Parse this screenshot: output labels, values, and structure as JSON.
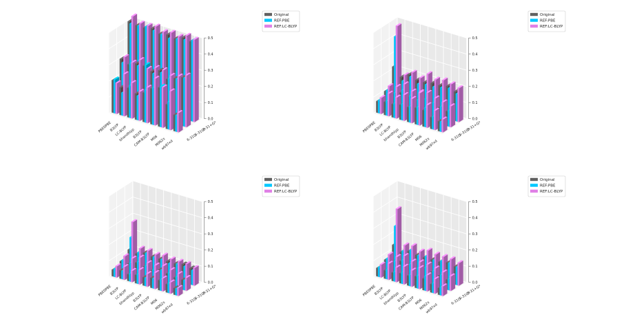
{
  "chart_data": [
    {
      "type": "bar3d",
      "functionals": [
        "PBE0PBE",
        "B3LYP",
        "LC-BLYP",
        "bhandhlyp",
        "B3LYP",
        "CAM-B3LYP",
        "M06",
        "M062x",
        "wb97xd"
      ],
      "basis_sets": [
        "6-31G",
        "6-31G*",
        "6-31+G*"
      ],
      "zlim": [
        0,
        0.5
      ],
      "zticks": [
        "0.0",
        "0.1",
        "0.2",
        "0.3",
        "0.4",
        "0.5"
      ],
      "legend": [
        "Original",
        "REF:PBE",
        "REF:LC-BLYP"
      ],
      "colors": [
        "#616161",
        "#00c8ff",
        "#e080e6"
      ],
      "series": [
        {
          "name": "Original",
          "values": [
            [
              0.2,
              0.17,
              0.18,
              0.16,
              0.18,
              0.22,
              0.24,
              0.15,
              0.1
            ],
            [
              0.3,
              0.28,
              0.3,
              0.3,
              0.28,
              0.3,
              0.26,
              0.28,
              0.3
            ],
            [
              0.5,
              0.49,
              0.49,
              0.5,
              0.48,
              0.49,
              0.48,
              0.5,
              0.49
            ]
          ]
        },
        {
          "name": "REF:PBE",
          "values": [
            [
              0.21,
              0.14,
              0.2,
              0.15,
              0.2,
              0.23,
              0.25,
              0.17,
              0.1
            ],
            [
              0.28,
              0.29,
              0.29,
              0.31,
              0.27,
              0.29,
              0.27,
              0.28,
              0.3
            ],
            [
              0.49,
              0.49,
              0.5,
              0.49,
              0.48,
              0.47,
              0.48,
              0.49,
              0.5
            ]
          ]
        },
        {
          "name": "REF:LC-BLYP",
          "values": [
            [
              0.19,
              0.26,
              0.22,
              0.18,
              0.22,
              0.29,
              0.25,
              0.24,
              0.12
            ],
            [
              0.32,
              0.3,
              0.33,
              0.29,
              0.31,
              0.31,
              0.29,
              0.3,
              0.32
            ],
            [
              0.54,
              0.51,
              0.51,
              0.52,
              0.5,
              0.51,
              0.5,
              0.52,
              0.51
            ]
          ]
        }
      ]
    },
    {
      "type": "bar3d",
      "functionals": [
        "PBE0PBE",
        "B3LYP",
        "LC-BLYP",
        "bhandhlyp",
        "B3LYP",
        "CAM-B3LYP",
        "M06",
        "M062x",
        "wb97xd"
      ],
      "basis_sets": [
        "6-31G",
        "6-31G*",
        "6-31+G*"
      ],
      "zlim": [
        0,
        0.5
      ],
      "zticks": [
        "0.0",
        "0.1",
        "0.2",
        "0.3",
        "0.4",
        "0.5"
      ],
      "legend": [
        "Original",
        "REF:PBE",
        "REF:LC-BLYP"
      ],
      "colors": [
        "#616161",
        "#00c8ff",
        "#e080e6"
      ],
      "series": [
        {
          "name": "Original",
          "values": [
            [
              0.07,
              0.08,
              0.08,
              0.09,
              0.09,
              0.1,
              0.1,
              0.07,
              0.06
            ],
            [
              0.1,
              0.1,
              0.12,
              0.11,
              0.1,
              0.12,
              0.11,
              0.1,
              0.09
            ],
            [
              0.22,
              0.17,
              0.2,
              0.18,
              0.18,
              0.19,
              0.19,
              0.2,
              0.18
            ]
          ]
        },
        {
          "name": "REF:PBE",
          "values": [
            [
              0.08,
              0.09,
              0.09,
              0.1,
              0.1,
              0.11,
              0.12,
              0.08,
              0.06
            ],
            [
              0.11,
              0.11,
              0.14,
              0.12,
              0.11,
              0.13,
              0.12,
              0.11,
              0.1
            ],
            [
              0.41,
              0.15,
              0.19,
              0.16,
              0.17,
              0.17,
              0.18,
              0.19,
              0.17
            ]
          ]
        },
        {
          "name": "REF:LC-BLYP",
          "values": [
            [
              0.1,
              0.14,
              0.13,
              0.16,
              0.15,
              0.2,
              0.14,
              0.12,
              0.08
            ],
            [
              0.14,
              0.15,
              0.18,
              0.15,
              0.16,
              0.17,
              0.15,
              0.14,
              0.13
            ],
            [
              0.48,
              0.19,
              0.22,
              0.2,
              0.24,
              0.22,
              0.23,
              0.22,
              0.21
            ]
          ]
        }
      ]
    },
    {
      "type": "bar3d",
      "functionals": [
        "PBE0PBE",
        "B3LYP",
        "LC-BLYP",
        "bhandhlyp",
        "B3LYP",
        "CAM-B3LYP",
        "M06",
        "M062x",
        "wb97xd"
      ],
      "basis_sets": [
        "6-31G",
        "6-31G*",
        "6-31+G*"
      ],
      "zlim": [
        0,
        0.5
      ],
      "zticks": [
        "0.0",
        "0.1",
        "0.2",
        "0.3",
        "0.4",
        "0.5"
      ],
      "legend": [
        "Original",
        "REF:PBE",
        "REF:LC-BLYP"
      ],
      "colors": [
        "#616161",
        "#00c8ff",
        "#e080e6"
      ],
      "series": [
        {
          "name": "Original",
          "values": [
            [
              0.04,
              0.05,
              0.04,
              0.05,
              0.05,
              0.06,
              0.06,
              0.05,
              0.04
            ],
            [
              0.06,
              0.06,
              0.08,
              0.07,
              0.06,
              0.08,
              0.07,
              0.06,
              0.06
            ],
            [
              0.1,
              0.09,
              0.11,
              0.1,
              0.1,
              0.1,
              0.1,
              0.11,
              0.1
            ]
          ]
        },
        {
          "name": "REF:PBE",
          "values": [
            [
              0.05,
              0.05,
              0.05,
              0.06,
              0.05,
              0.06,
              0.07,
              0.06,
              0.04
            ],
            [
              0.07,
              0.07,
              0.09,
              0.08,
              0.07,
              0.08,
              0.08,
              0.07,
              0.06
            ],
            [
              0.18,
              0.1,
              0.11,
              0.1,
              0.1,
              0.09,
              0.1,
              0.1,
              0.09
            ]
          ]
        },
        {
          "name": "REF:LC-BLYP",
          "values": [
            [
              0.07,
              0.08,
              0.07,
              0.09,
              0.08,
              0.1,
              0.08,
              0.07,
              0.05
            ],
            [
              0.1,
              0.1,
              0.12,
              0.1,
              0.1,
              0.11,
              0.1,
              0.09,
              0.08
            ],
            [
              0.28,
              0.13,
              0.13,
              0.12,
              0.13,
              0.12,
              0.12,
              0.12,
              0.11
            ]
          ]
        }
      ]
    },
    {
      "type": "bar3d",
      "functionals": [
        "PBE0PBE",
        "B3LYP",
        "LC-BLYP",
        "bhandhlyp",
        "B3LYP",
        "CAM-B3LYP",
        "M06",
        "M062x",
        "wb97xd"
      ],
      "basis_sets": [
        "6-31G",
        "6-31G*",
        "6-31+G*"
      ],
      "zlim": [
        0,
        0.5
      ],
      "zticks": [
        "0.0",
        "0.1",
        "0.2",
        "0.3",
        "0.4",
        "0.5"
      ],
      "legend": [
        "Original",
        "REF:PBE",
        "REF:LC-BLYP"
      ],
      "colors": [
        "#616161",
        "#00c8ff",
        "#e080e6"
      ],
      "series": [
        {
          "name": "Original",
          "values": [
            [
              0.05,
              0.05,
              0.05,
              0.06,
              0.06,
              0.07,
              0.07,
              0.05,
              0.04
            ],
            [
              0.07,
              0.07,
              0.09,
              0.08,
              0.07,
              0.09,
              0.08,
              0.07,
              0.06
            ],
            [
              0.13,
              0.1,
              0.12,
              0.11,
              0.11,
              0.11,
              0.11,
              0.12,
              0.11
            ]
          ]
        },
        {
          "name": "REF:PBE",
          "values": [
            [
              0.06,
              0.06,
              0.06,
              0.07,
              0.07,
              0.08,
              0.09,
              0.06,
              0.05
            ],
            [
              0.08,
              0.08,
              0.1,
              0.09,
              0.08,
              0.1,
              0.09,
              0.08,
              0.07
            ],
            [
              0.25,
              0.11,
              0.13,
              0.11,
              0.12,
              0.11,
              0.12,
              0.12,
              0.11
            ]
          ]
        },
        {
          "name": "REF:LC-BLYP",
          "values": [
            [
              0.08,
              0.1,
              0.09,
              0.11,
              0.1,
              0.13,
              0.1,
              0.09,
              0.06
            ],
            [
              0.11,
              0.11,
              0.13,
              0.11,
              0.12,
              0.12,
              0.11,
              0.1,
              0.09
            ],
            [
              0.36,
              0.15,
              0.16,
              0.14,
              0.16,
              0.15,
              0.15,
              0.15,
              0.14
            ]
          ]
        }
      ]
    }
  ]
}
